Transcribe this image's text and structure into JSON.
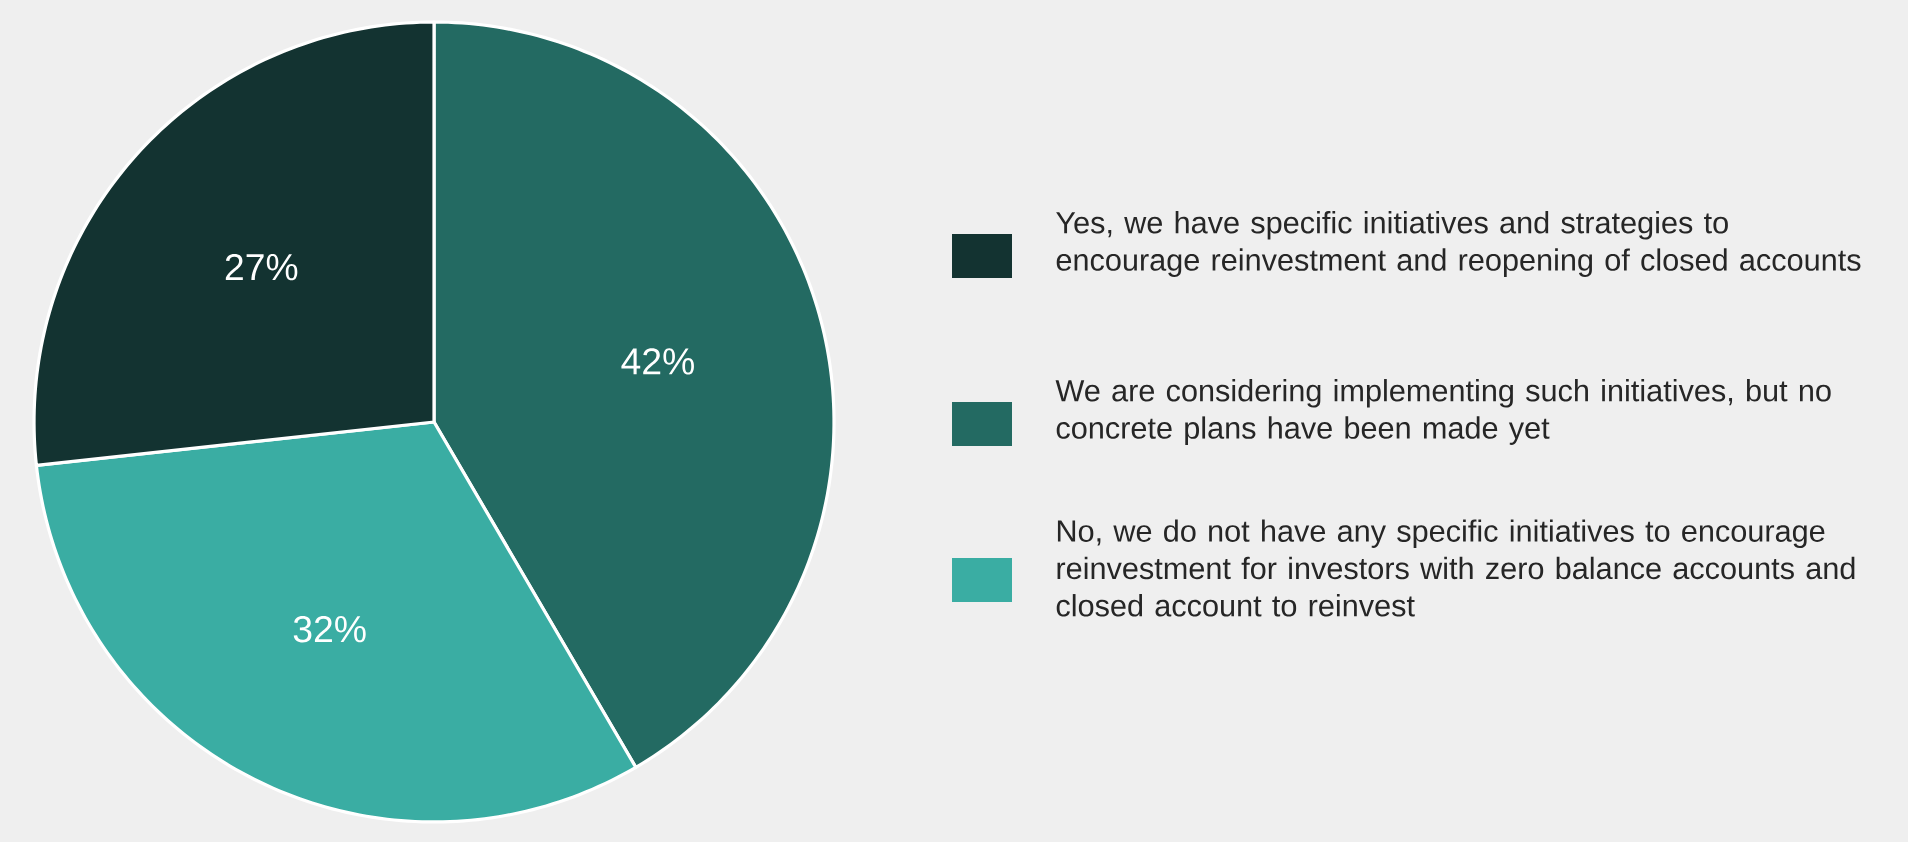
{
  "chart_data": {
    "type": "pie",
    "categories": [
      "Yes, we have specific initiatives and strategies to encourage reinvestment and reopening of closed accounts",
      "We are considering implementing such initiatives, but no concrete plans have been made yet",
      "No, we do not have any specific initiatives to encourage reinvestment for investors with zero balance accounts and closed account to reinvest"
    ],
    "values": [
      27,
      42,
      32
    ],
    "value_labels": [
      "27%",
      "42%",
      "32%"
    ],
    "colors": [
      "#133331",
      "#236a62",
      "#3aada3"
    ],
    "legend": "right"
  }
}
